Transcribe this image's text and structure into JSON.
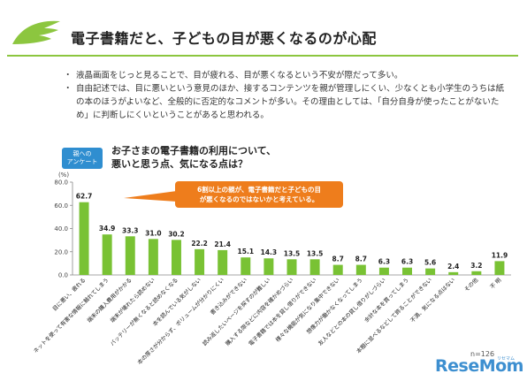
{
  "header": {
    "title": "電子書籍だと、子どもの目が悪くなるのが心配"
  },
  "bullets": [
    "液晶画面をじっと見ることで、目が疲れる、目が悪くなるという不安が際だって多い。",
    "自由記述では、目に悪いという意見のほか、接するコンテンツを親が管理しにくい、少なくとも小学生のうちは紙の本のほうがよいなど、全般的に否定的なコメントが多い。その理由としては、「自分自身が使ったことがないため」に判断しにくいということがあると思われる。"
  ],
  "badge": {
    "line1": "親への",
    "line2": "アンケート"
  },
  "callout": {
    "line1": "6割以上の親が、電子書籍だと子どもの目",
    "line2": "が悪くなるのではないかと考えている。"
  },
  "footer": {
    "n": "n=126",
    "logo": "ReseMom",
    "logo_sub": "リセマム"
  },
  "colors": {
    "bar": "#79c234",
    "accent_line": "#8cc63f",
    "callout": "#ee7d1c",
    "badge": "#2f8ed0"
  },
  "chart_data": {
    "type": "bar",
    "title": "お子さまの電子書籍の利用について、悪いと思う点、気になる点は？",
    "title_line1": "お子さまの電子書籍の利用について、",
    "title_line2": "悪いと思う点、気になる点は？",
    "ylabel": "(%)",
    "ylim": [
      0,
      80
    ],
    "yticks": [
      "0.0",
      "20.0",
      "40.0",
      "60.0",
      "80.0"
    ],
    "grid": false,
    "categories": [
      "目に悪い、疲れる",
      "ネットを使って有害な情報に触れてしまう",
      "端末の購入費用がかかる",
      "端末が壊れたら読めない",
      "バッテリーが無くなると読めなくなる",
      "本を読んでいる気がしない",
      "本の厚さが分からず、ボリュームが分かりにくい",
      "書き込みができない",
      "読み返したいページを探すのが難しい",
      "購入する際などに内容を確かめづらい",
      "電子書籍では本を貸し借りができない",
      "様々な機能が気になり集中できない",
      "想像力が働かなくなってしまう",
      "友人などとの本の貸し借りがしづらい",
      "余計な本を買ってしまう",
      "本棚に並べるなどして飾ることができない",
      "不満、気になる点はない",
      "その他",
      "不 明"
    ],
    "values": [
      62.7,
      34.9,
      33.3,
      31.0,
      30.2,
      22.2,
      21.4,
      15.1,
      14.3,
      13.5,
      13.5,
      8.7,
      8.7,
      6.3,
      6.3,
      5.6,
      2.4,
      3.2,
      11.9
    ],
    "value_labels": [
      "62.7",
      "34.9",
      "33.3",
      "31.0",
      "30.2",
      "22.2",
      "21.4",
      "15.1",
      "14.3",
      "13.5",
      "13.5",
      "8.7",
      "8.7",
      "6.3",
      "6.3",
      "5.6",
      "2.4",
      "3.2",
      "11.9"
    ],
    "n": "n=126"
  }
}
